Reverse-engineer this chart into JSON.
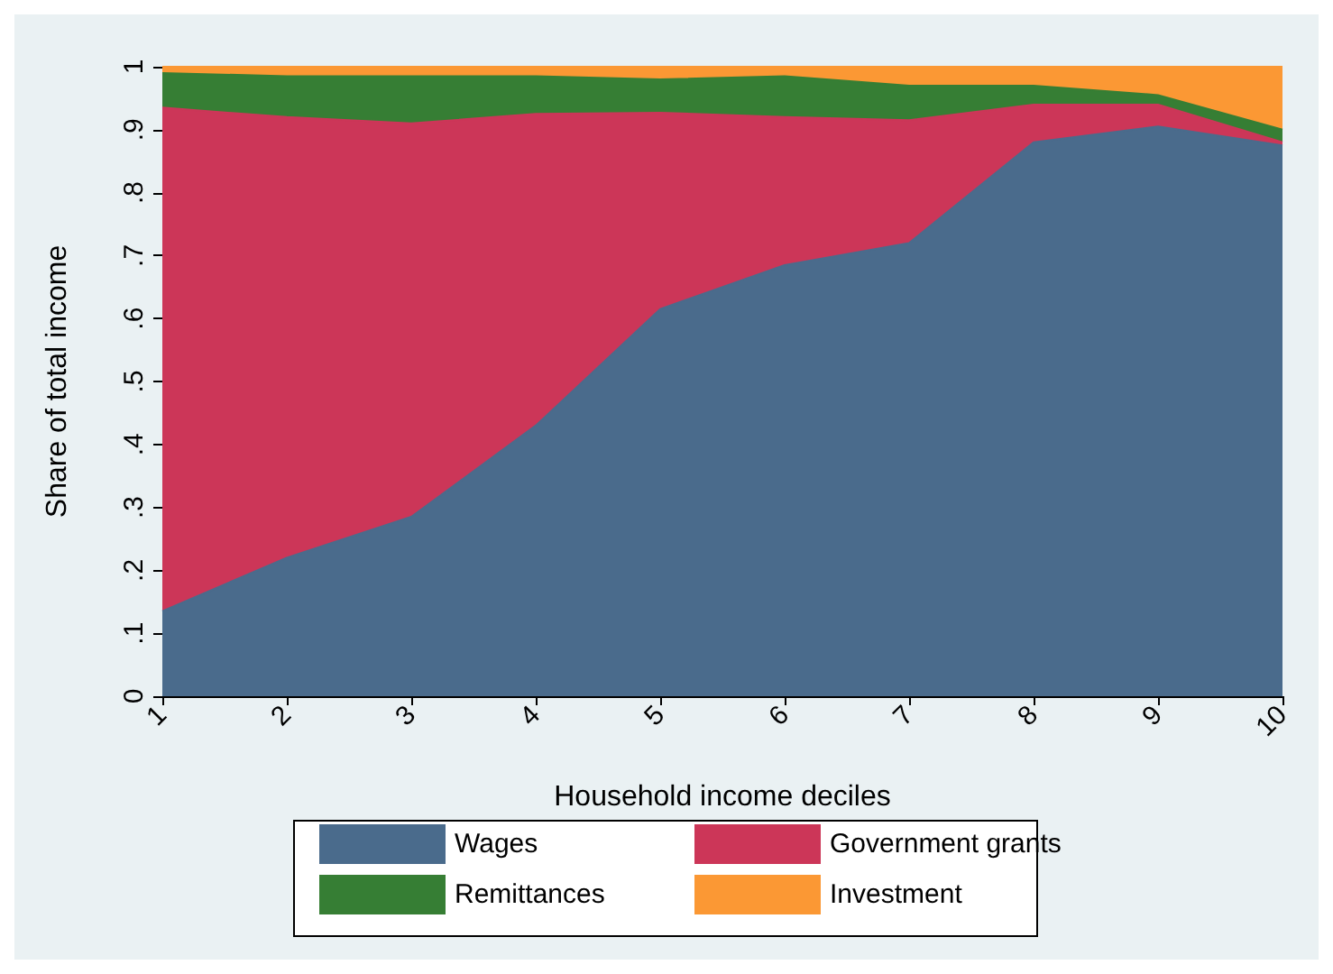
{
  "chart_data": {
    "type": "area",
    "stacked": true,
    "xlabel": "Household income deciles",
    "ylabel": "Share of total income",
    "categories": [
      "1",
      "2",
      "3",
      "4",
      "5",
      "6",
      "7",
      "8",
      "9",
      "10"
    ],
    "series": [
      {
        "name": "Wages",
        "color": "#4a6b8c",
        "values": [
          0.135,
          0.22,
          0.285,
          0.43,
          0.615,
          0.685,
          0.72,
          0.88,
          0.905,
          0.875
        ]
      },
      {
        "name": "Government grants",
        "color": "#cc3658",
        "values": [
          0.8,
          0.7,
          0.625,
          0.495,
          0.312,
          0.235,
          0.195,
          0.06,
          0.035,
          0.005
        ]
      },
      {
        "name": "Remittances",
        "color": "#367e34",
        "values": [
          0.055,
          0.065,
          0.075,
          0.06,
          0.053,
          0.065,
          0.055,
          0.03,
          0.015,
          0.02
        ]
      },
      {
        "name": "Investment",
        "color": "#fb9834",
        "values": [
          0.01,
          0.015,
          0.015,
          0.015,
          0.02,
          0.015,
          0.03,
          0.03,
          0.045,
          0.1
        ]
      }
    ],
    "ylim": [
      0,
      1
    ],
    "yticks": [
      0,
      {
        "value": 0.1,
        "label": ".1"
      },
      {
        "value": 0.2,
        "label": ".2"
      },
      {
        "value": 0.3,
        "label": ".3"
      },
      {
        "value": 0.4,
        "label": ".4"
      },
      {
        "value": 0.5,
        "label": ".5"
      },
      {
        "value": 0.6,
        "label": ".6"
      },
      {
        "value": 0.7,
        "label": ".7"
      },
      {
        "value": 0.8,
        "label": ".8"
      },
      {
        "value": 0.9,
        "label": ".9"
      },
      1
    ],
    "legend": "bottom"
  }
}
